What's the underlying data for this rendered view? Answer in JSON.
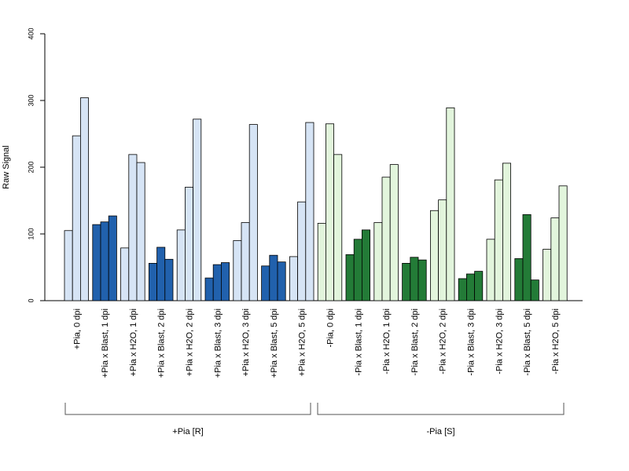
{
  "chart_data": {
    "type": "bar",
    "ylabel": "Raw Signal",
    "ylim": [
      0,
      400
    ],
    "yticks": [
      0,
      100,
      200,
      300,
      400
    ],
    "grid": false,
    "colors": {
      "r_control": "#d6e4f5",
      "r_blast": "#2161ad",
      "s_control": "#e2f5dc",
      "s_blast": "#237b37",
      "stroke": "#000000"
    },
    "categories": [
      "+Pia, 0 dpi",
      "+Pia x Blast, 1 dpi",
      "+Pia x H2O, 1 dpi",
      "+Pia x Blast, 2 dpi",
      "+Pia x H2O, 2 dpi",
      "+Pia x Blast, 3 dpi",
      "+Pia x H2O, 3 dpi",
      "+Pia x Blast, 5 dpi",
      "+Pia x H2O, 5 dpi",
      "-Pia, 0 dpi",
      "-Pia x Blast, 1 dpi",
      "-Pia x H2O, 1 dpi",
      "-Pia x Blast, 2 dpi",
      "-Pia x H2O, 2 dpi",
      "-Pia x Blast, 3 dpi",
      "-Pia x H2O, 3 dpi",
      "-Pia x Blast, 5 dpi",
      "-Pia x H2O, 5 dpi"
    ],
    "bar_groups": [
      {
        "values": [
          105,
          247,
          304
        ],
        "color_key": "r_control"
      },
      {
        "values": [
          114,
          118,
          127
        ],
        "color_key": "r_blast"
      },
      {
        "values": [
          79,
          219,
          207
        ],
        "color_key": "r_control"
      },
      {
        "values": [
          56,
          80,
          62
        ],
        "color_key": "r_blast"
      },
      {
        "values": [
          106,
          170,
          272
        ],
        "color_key": "r_control"
      },
      {
        "values": [
          34,
          54,
          57
        ],
        "color_key": "r_blast"
      },
      {
        "values": [
          90,
          117,
          264
        ],
        "color_key": "r_control"
      },
      {
        "values": [
          52,
          68,
          58
        ],
        "color_key": "r_blast"
      },
      {
        "values": [
          66,
          148,
          267
        ],
        "color_key": "r_control"
      },
      {
        "values": [
          116,
          265,
          219
        ],
        "color_key": "s_control"
      },
      {
        "values": [
          69,
          92,
          106
        ],
        "color_key": "s_blast"
      },
      {
        "values": [
          117,
          185,
          204
        ],
        "color_key": "s_control"
      },
      {
        "values": [
          56,
          65,
          61
        ],
        "color_key": "s_blast"
      },
      {
        "values": [
          135,
          151,
          289
        ],
        "color_key": "s_control"
      },
      {
        "values": [
          33,
          40,
          44
        ],
        "color_key": "s_blast"
      },
      {
        "values": [
          92,
          181,
          206
        ],
        "color_key": "s_control"
      },
      {
        "values": [
          63,
          129,
          31
        ],
        "color_key": "s_blast"
      },
      {
        "values": [
          77,
          124,
          172
        ],
        "color_key": "s_control"
      }
    ],
    "genotype_groups": [
      {
        "label": "+Pia [R]",
        "first": 0,
        "last": 8
      },
      {
        "label": "-Pia [S]",
        "first": 9,
        "last": 17
      }
    ]
  }
}
